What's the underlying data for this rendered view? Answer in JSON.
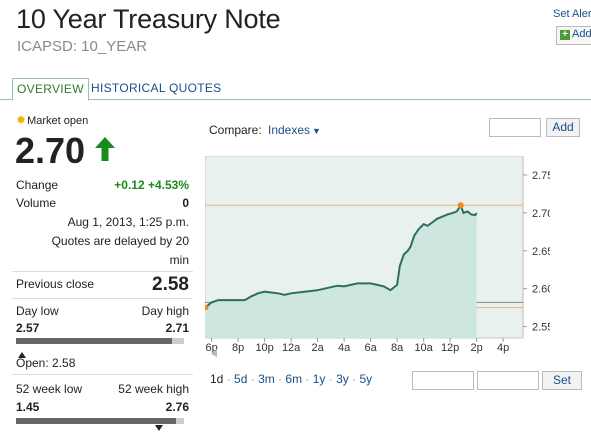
{
  "header": {
    "title": "10 Year Treasury Note",
    "subtitle": "ICAPSD: 10_YEAR",
    "set_alert": "Set Aler",
    "add_label": "Add"
  },
  "tabs": [
    {
      "label": "OVERVIEW",
      "active": true
    },
    {
      "label": "HISTORICAL QUOTES",
      "active": false
    }
  ],
  "quote": {
    "market_status": "Market open",
    "price": "2.70",
    "change_label": "Change",
    "change_value": "+0.12 +4.53%",
    "volume_label": "Volume",
    "volume_value": "0",
    "timestamp": "Aug 1, 2013, 1:25 p.m.",
    "delay_note_1": "Quotes are delayed by 20",
    "delay_note_2": "min",
    "prev_close_label": "Previous close",
    "prev_close_value": "2.58",
    "day_low_label": "Day low",
    "day_high_label": "Day high",
    "day_low_value": "2.57",
    "day_high_value": "2.71",
    "day_range_position": 0.93,
    "open_text": "Open: 2.58",
    "wk52_low_label": "52 week low",
    "wk52_high_label": "52 week high",
    "wk52_low_value": "1.45",
    "wk52_high_value": "2.76",
    "wk52_range_position": 0.95,
    "colors": {
      "up": "#1a8a1a",
      "link": "#1a4f8a"
    }
  },
  "compare": {
    "label": "Compare:",
    "dropdown_value": "Indexes",
    "add_button": "Add"
  },
  "range_selector": {
    "ranges": [
      "1d",
      "5d",
      "3m",
      "6m",
      "1y",
      "3y",
      "5y"
    ],
    "active": "1d",
    "set_button": "Set"
  },
  "chart_data": {
    "type": "area",
    "y_ticks": [
      "2.75",
      "2.70",
      "2.65",
      "2.60",
      "2.55"
    ],
    "ylim": [
      2.535,
      2.775
    ],
    "x_ticks": [
      "6p",
      "8p",
      "10p",
      "12a",
      "2a",
      "4a",
      "6a",
      "8a",
      "10a",
      "12p",
      "2p",
      "4p"
    ],
    "x_tick_hours": [
      0,
      2,
      4,
      6,
      8,
      10,
      12,
      14,
      16,
      18,
      20,
      22
    ],
    "xlim": [
      -0.5,
      23.5
    ],
    "reference_lines": {
      "day_high": 2.71,
      "day_low": 2.575,
      "prev_close": 2.582
    },
    "series": [
      {
        "x": [
          -0.5,
          0,
          0.5,
          1,
          2,
          2.5,
          3,
          3.5,
          4,
          5,
          5.5,
          6,
          7,
          7.5,
          8,
          8.5,
          9,
          9.5,
          10,
          10.5,
          11,
          12,
          12.5,
          13,
          13.5,
          14,
          14.2,
          14.5,
          14.8,
          15,
          15.3,
          15.6,
          16,
          16.3,
          16.7,
          17,
          17.4,
          17.8,
          18.2,
          18.5,
          18.8,
          19,
          19.3,
          19.6,
          19.9,
          20
        ],
        "y": [
          2.575,
          2.582,
          2.585,
          2.585,
          2.585,
          2.585,
          2.59,
          2.594,
          2.596,
          2.594,
          2.592,
          2.594,
          2.596,
          2.597,
          2.598,
          2.6,
          2.602,
          2.604,
          2.603,
          2.605,
          2.607,
          2.607,
          2.605,
          2.603,
          2.598,
          2.605,
          2.63,
          2.645,
          2.65,
          2.655,
          2.67,
          2.678,
          2.685,
          2.683,
          2.688,
          2.692,
          2.695,
          2.698,
          2.7,
          2.702,
          2.71,
          2.7,
          2.702,
          2.698,
          2.697,
          2.7
        ]
      }
    ],
    "grid": false,
    "marker": {
      "x": 18.8,
      "y": 2.71
    }
  }
}
